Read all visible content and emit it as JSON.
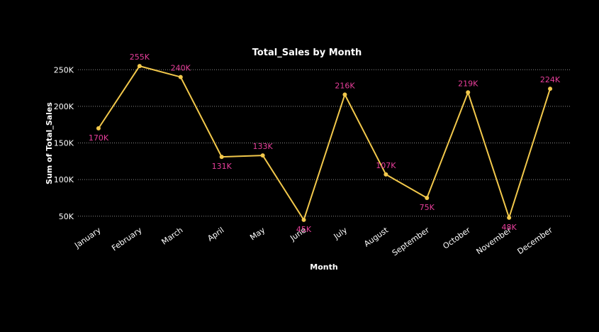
{
  "chart_data": {
    "type": "line",
    "title": "Total_Sales by Month",
    "xlabel": "Month",
    "ylabel": "Sum of Total_Sales",
    "categories": [
      "January",
      "February",
      "March",
      "April",
      "May",
      "June",
      "July",
      "August",
      "September",
      "October",
      "November",
      "December"
    ],
    "values": [
      170000,
      255000,
      240000,
      131000,
      133000,
      45000,
      216000,
      107000,
      75000,
      219000,
      48000,
      224000
    ],
    "data_labels": [
      "170K",
      "255K",
      "240K",
      "131K",
      "133K",
      "45K",
      "216K",
      "107K",
      "75K",
      "219K",
      "48K",
      "224K"
    ],
    "y_ticks": [
      50000,
      100000,
      150000,
      200000,
      250000
    ],
    "y_tick_labels": [
      "50K",
      "100K",
      "150K",
      "200K",
      "250K"
    ],
    "ylim": [
      43000,
      258000
    ],
    "grid": true,
    "colors": {
      "background": "#000000",
      "line": "#F2C84B",
      "label": "#E83E9B",
      "text": "#ffffff",
      "grid": "#8a8a8a"
    }
  }
}
